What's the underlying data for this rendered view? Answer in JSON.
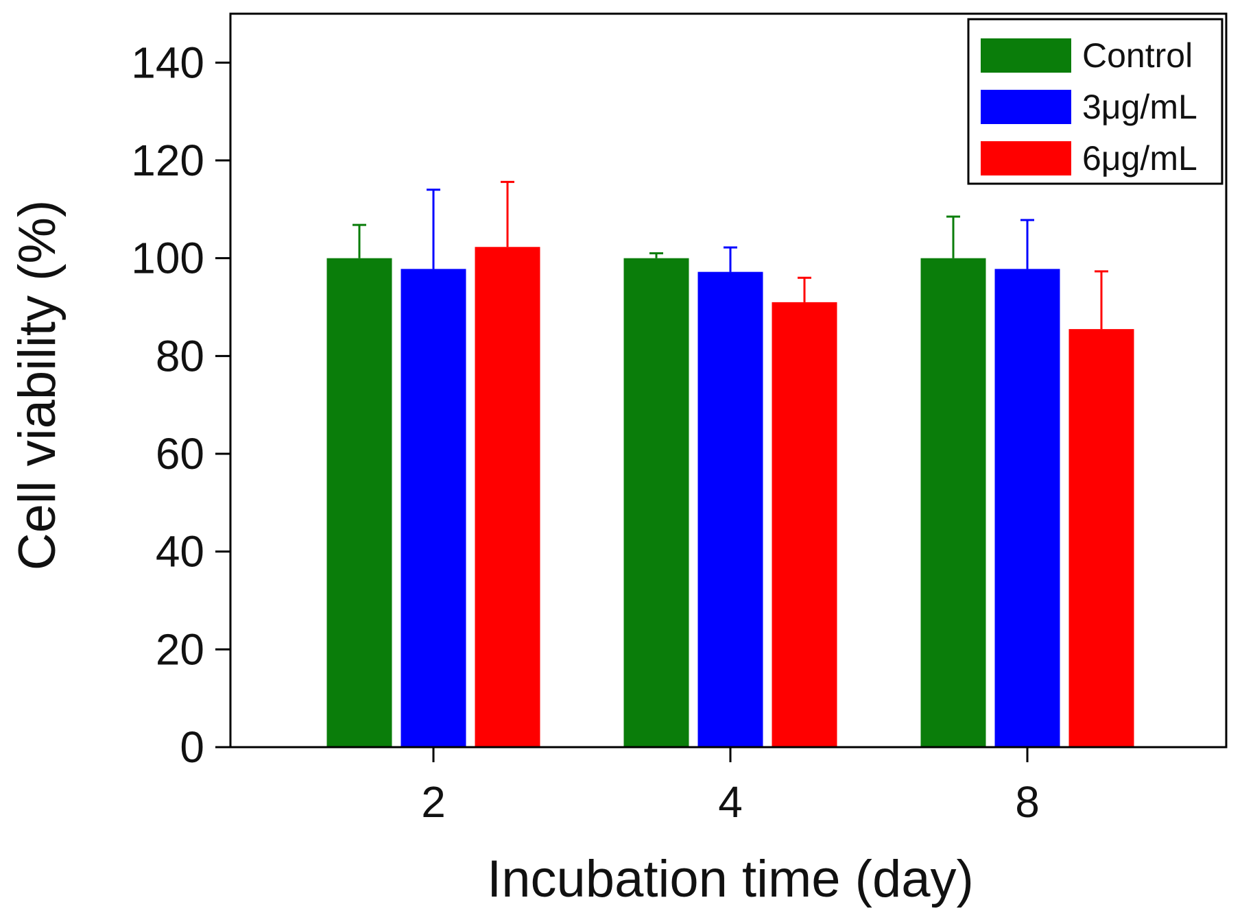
{
  "chart_data": {
    "type": "bar",
    "title": "",
    "xlabel": "Incubation time (day)",
    "ylabel": "Cell viability (%)",
    "categories": [
      "2",
      "4",
      "8"
    ],
    "ylim": [
      0,
      150
    ],
    "yticks": [
      0,
      20,
      40,
      60,
      80,
      100,
      120,
      140
    ],
    "ytick_labels": [
      "0",
      "20",
      "40",
      "60",
      "80",
      "100",
      "120",
      "140"
    ],
    "series": [
      {
        "name": "Control",
        "color": "#0a7d0a",
        "values": [
          100,
          100,
          100
        ],
        "errors": [
          6.8,
          1.0,
          8.5
        ]
      },
      {
        "name": "3μg/mL",
        "color": "#0000ff",
        "values": [
          97.8,
          97.2,
          97.8
        ],
        "errors": [
          16.2,
          5.0,
          10.0
        ]
      },
      {
        "name": "6μg/mL",
        "color": "#ff0000",
        "values": [
          102.3,
          91.0,
          85.5
        ],
        "errors": [
          13.3,
          5.0,
          11.8
        ]
      }
    ],
    "legend_position": "top-right",
    "grid": false
  }
}
